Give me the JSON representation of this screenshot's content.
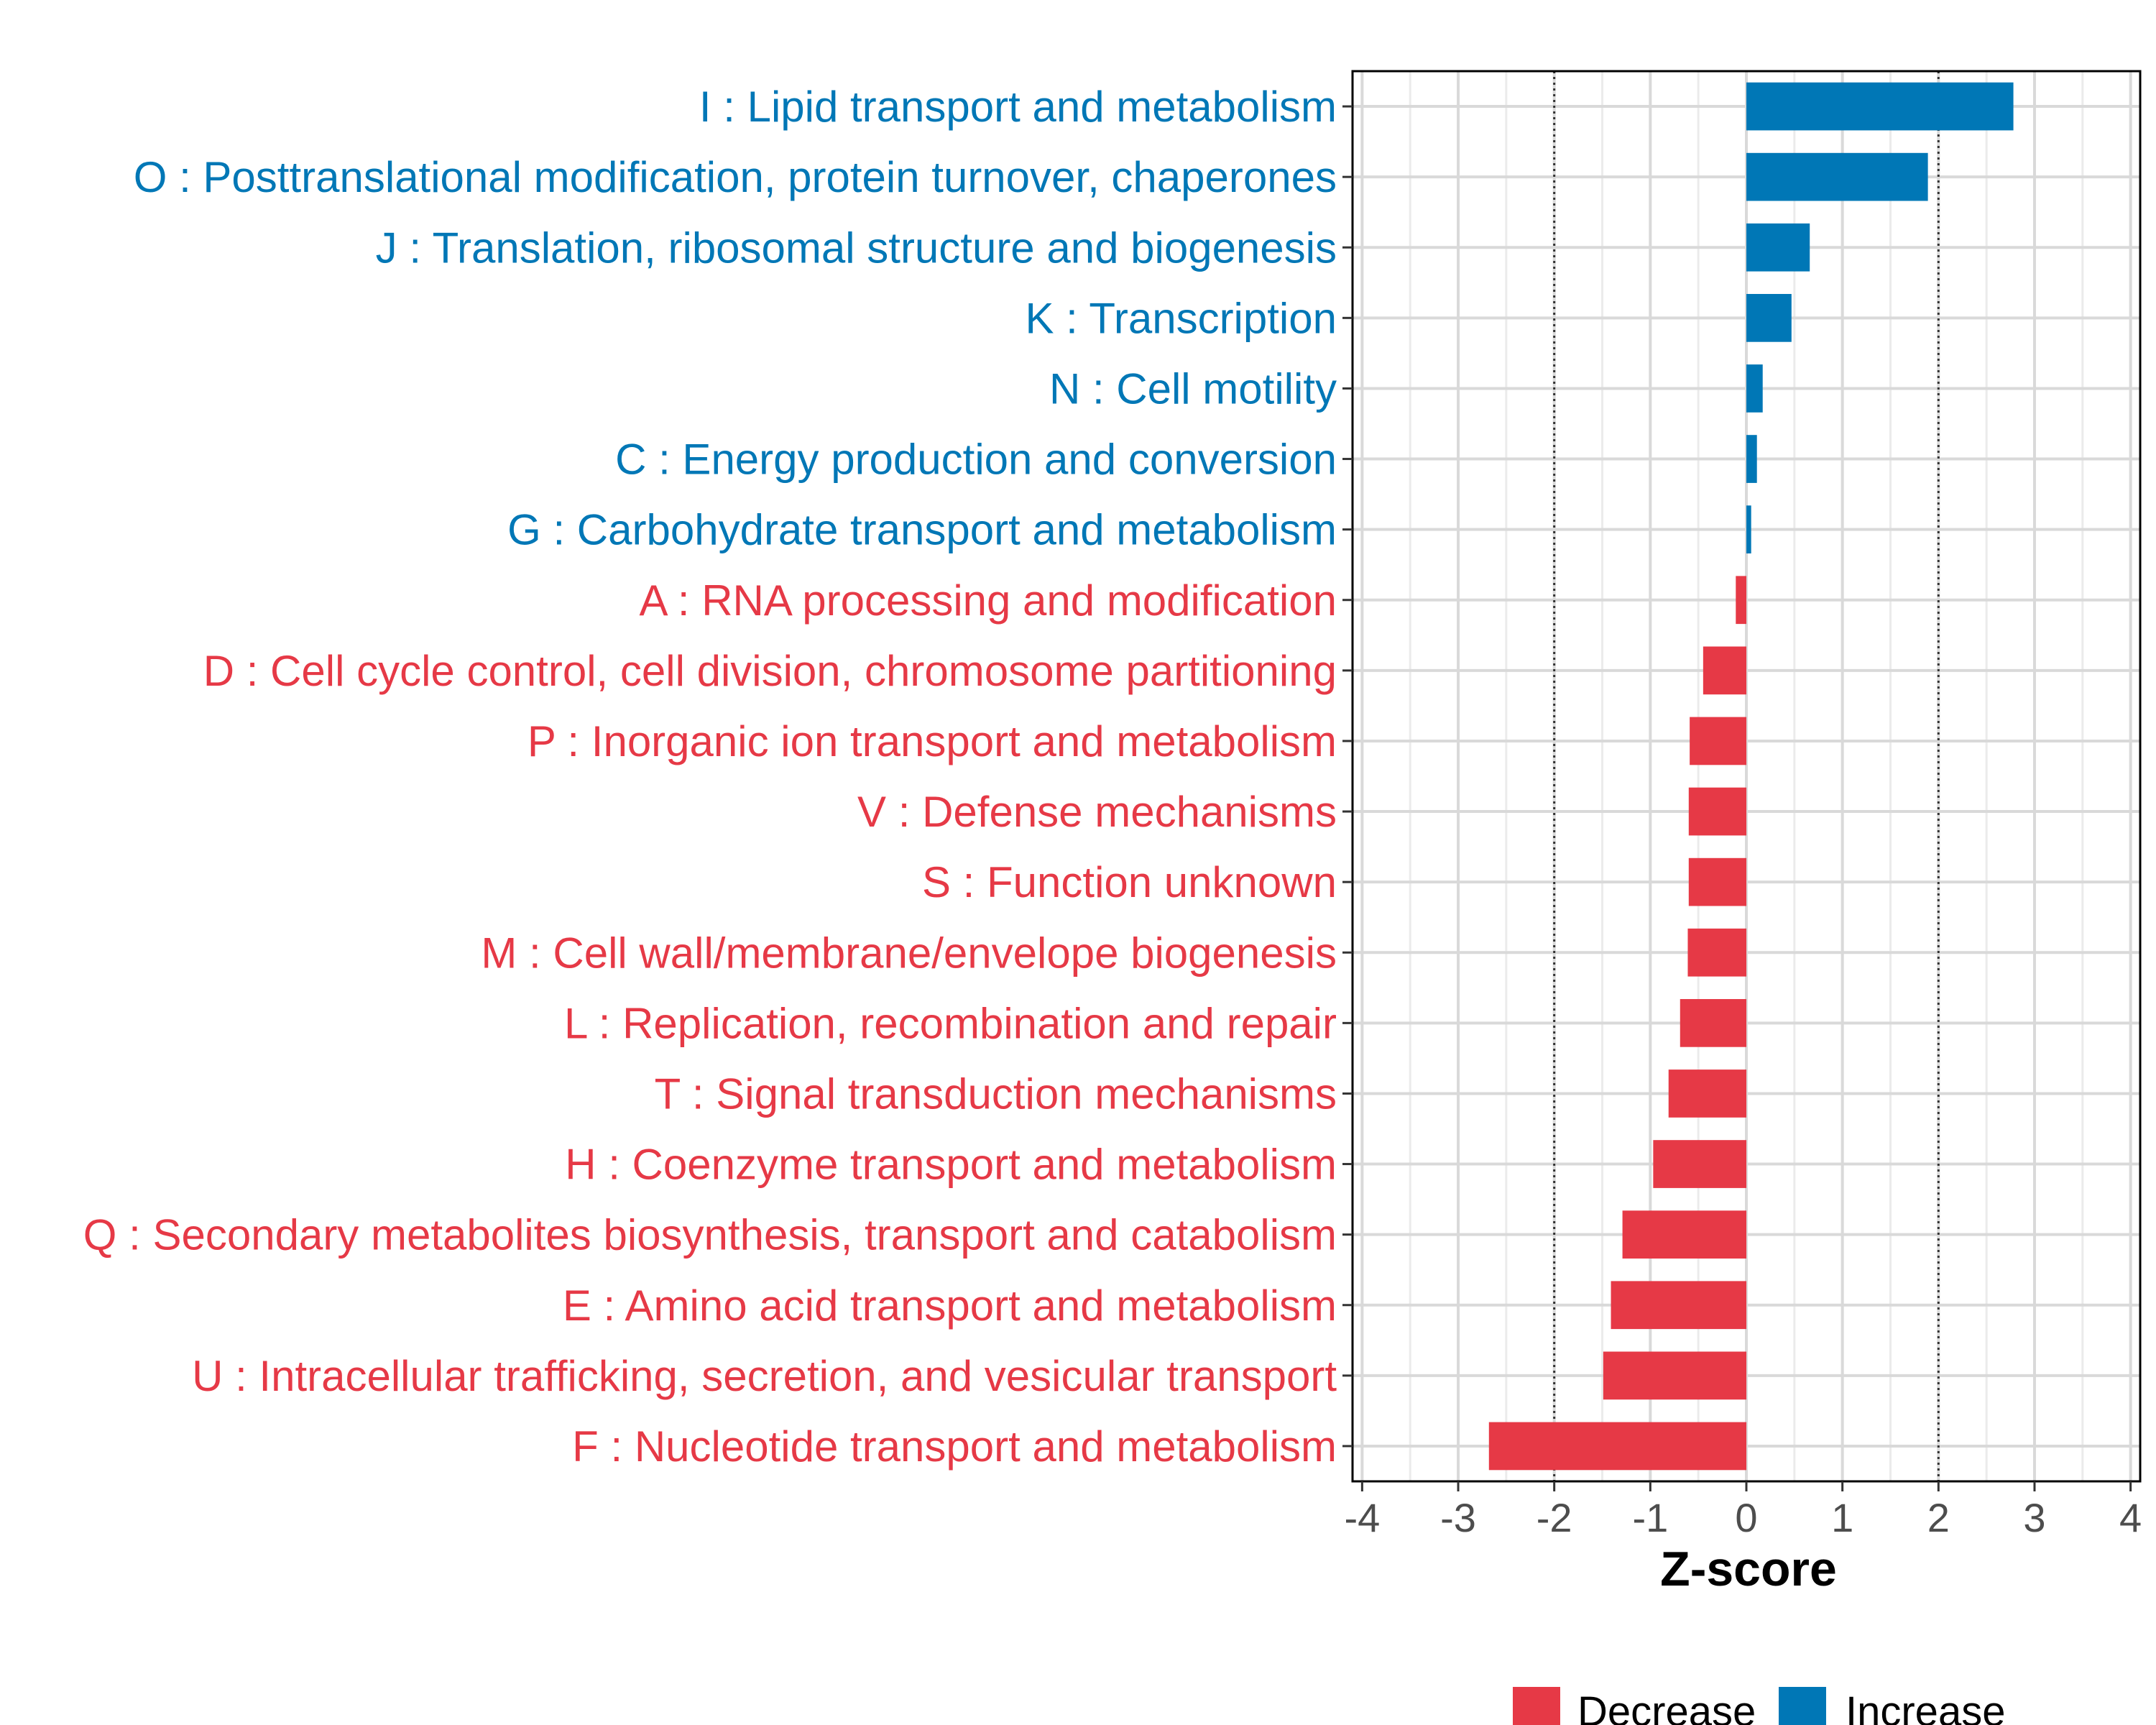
{
  "chart_data": {
    "type": "bar",
    "orientation": "horizontal",
    "xlabel": "Z-score",
    "ylabel": "",
    "xlim": [
      -4.1,
      4.1
    ],
    "x_ticks": [
      -4,
      -3,
      -2,
      -1,
      0,
      1,
      2,
      3,
      4
    ],
    "x_tick_labels": [
      "-4",
      "-3",
      "-2",
      "-1",
      "0",
      "1",
      "2",
      "3",
      "4"
    ],
    "reference_lines": [
      -2,
      2
    ],
    "colors": {
      "Decrease": "#e63946",
      "Increase": "#0077b6"
    },
    "legend": {
      "position": "bottom",
      "entries": [
        "Decrease",
        "Increase"
      ]
    },
    "categories": [
      "I : Lipid transport and metabolism",
      "O : Posttranslational modification, protein turnover, chaperones",
      "J : Translation, ribosomal structure and biogenesis",
      "K : Transcription",
      "N : Cell motility",
      "C : Energy production and conversion",
      "G : Carbohydrate transport and metabolism",
      "A : RNA processing and modification",
      "D : Cell cycle control, cell division, chromosome partitioning",
      "P : Inorganic ion transport and metabolism",
      "V : Defense mechanisms",
      "S : Function unknown",
      "M : Cell wall/membrane/envelope biogenesis",
      "L : Replication, recombination and repair",
      "T : Signal transduction mechanisms",
      "H : Coenzyme transport and metabolism",
      "Q : Secondary metabolites biosynthesis, transport and catabolism",
      "E : Amino acid transport and metabolism",
      "U : Intracellular trafficking, secretion, and vesicular transport",
      "F : Nucleotide transport and metabolism"
    ],
    "values": [
      2.78,
      1.89,
      0.66,
      0.47,
      0.17,
      0.11,
      0.05,
      -0.11,
      -0.45,
      -0.59,
      -0.6,
      -0.6,
      -0.61,
      -0.69,
      -0.81,
      -0.97,
      -1.29,
      -1.41,
      -1.49,
      -2.68
    ],
    "groups": [
      "Increase",
      "Increase",
      "Increase",
      "Increase",
      "Increase",
      "Increase",
      "Increase",
      "Decrease",
      "Decrease",
      "Decrease",
      "Decrease",
      "Decrease",
      "Decrease",
      "Decrease",
      "Decrease",
      "Decrease",
      "Decrease",
      "Decrease",
      "Decrease",
      "Decrease"
    ]
  }
}
